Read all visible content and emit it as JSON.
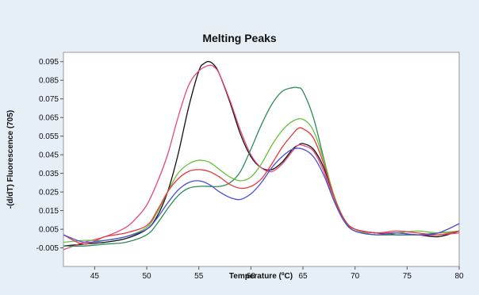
{
  "chart_data": {
    "type": "line",
    "title": "Melting Peaks",
    "xlabel": "Temperature (ºC)",
    "ylabel": "-(d/dT) Fluorescence (705)",
    "xlim": [
      42,
      80
    ],
    "ylim": [
      -0.015,
      0.1
    ],
    "x_ticks": [
      45,
      50,
      55,
      60,
      65,
      70,
      75,
      80
    ],
    "x_tick_labels": [
      "45",
      "50",
      "55",
      "60",
      "65",
      "70",
      "75",
      "80"
    ],
    "y_ticks": [
      -0.005,
      0.005,
      0.015,
      0.025,
      0.035,
      0.045,
      0.055,
      0.065,
      0.075,
      0.085,
      0.095
    ],
    "y_tick_labels": [
      "-0.005",
      "0.005",
      "0.015",
      "0.025",
      "0.035",
      "0.045",
      "0.055",
      "0.065",
      "0.075",
      "0.085",
      "0.095"
    ],
    "grid": false,
    "legend": "none",
    "series": [
      {
        "color": "#111111",
        "x": [
          42,
          44,
          46,
          48,
          50,
          51,
          52,
          53,
          54,
          55,
          55.5,
          56,
          56.5,
          57,
          58,
          59,
          60,
          61,
          62,
          63,
          64,
          64.5,
          65,
          66,
          67,
          68,
          69,
          70,
          72,
          74,
          76,
          78,
          80
        ],
        "y": [
          -0.004,
          -0.003,
          -0.002,
          0.0,
          0.005,
          0.012,
          0.025,
          0.045,
          0.07,
          0.09,
          0.094,
          0.095,
          0.093,
          0.088,
          0.073,
          0.056,
          0.044,
          0.038,
          0.037,
          0.041,
          0.048,
          0.05,
          0.051,
          0.048,
          0.038,
          0.022,
          0.01,
          0.005,
          0.003,
          0.002,
          0.002,
          0.001,
          0.004
        ]
      },
      {
        "color": "#e8457a",
        "x": [
          42,
          44,
          46,
          48,
          49,
          50,
          51,
          52,
          53,
          54,
          55,
          56,
          56.5,
          57,
          58,
          59,
          60,
          61,
          62,
          63,
          64,
          64.5,
          65,
          66,
          67,
          68,
          69,
          70,
          72,
          74,
          76,
          78,
          80
        ],
        "y": [
          -0.006,
          -0.002,
          0.001,
          0.006,
          0.011,
          0.018,
          0.03,
          0.045,
          0.065,
          0.082,
          0.09,
          0.093,
          0.092,
          0.088,
          0.074,
          0.058,
          0.045,
          0.038,
          0.036,
          0.04,
          0.047,
          0.05,
          0.05,
          0.047,
          0.036,
          0.02,
          0.009,
          0.005,
          0.003,
          0.003,
          0.002,
          0.002,
          0.003
        ]
      },
      {
        "color": "#2e8b57",
        "x": [
          42,
          44,
          46,
          48,
          50,
          51,
          52,
          53,
          54,
          55,
          56,
          57,
          58,
          59,
          60,
          61,
          62,
          63,
          64,
          64.5,
          65,
          66,
          67,
          68,
          69,
          70,
          72,
          74,
          76,
          78,
          80
        ],
        "y": [
          -0.004,
          -0.004,
          -0.003,
          -0.002,
          0.002,
          0.008,
          0.016,
          0.023,
          0.027,
          0.028,
          0.028,
          0.028,
          0.03,
          0.036,
          0.048,
          0.061,
          0.072,
          0.079,
          0.081,
          0.081,
          0.079,
          0.065,
          0.043,
          0.022,
          0.009,
          0.004,
          0.002,
          0.002,
          0.002,
          0.003,
          0.004
        ]
      },
      {
        "color": "#6abf3f",
        "x": [
          42,
          44,
          46,
          48,
          50,
          51,
          52,
          53,
          54,
          55,
          56,
          57,
          58,
          59,
          60,
          61,
          62,
          63,
          64,
          65,
          66,
          67,
          68,
          69,
          70,
          72,
          74,
          76,
          78,
          80
        ],
        "y": [
          -0.002,
          -0.001,
          -0.001,
          0.001,
          0.006,
          0.014,
          0.025,
          0.035,
          0.04,
          0.042,
          0.041,
          0.037,
          0.033,
          0.031,
          0.033,
          0.04,
          0.05,
          0.058,
          0.063,
          0.064,
          0.058,
          0.042,
          0.023,
          0.01,
          0.005,
          0.002,
          0.003,
          0.004,
          0.003,
          0.004
        ]
      },
      {
        "color": "#e8383a",
        "x": [
          42,
          44,
          46,
          48,
          50,
          51,
          52,
          53,
          54,
          55,
          56,
          57,
          58,
          59,
          60,
          61,
          62,
          63,
          64,
          64.5,
          65,
          66,
          67,
          68,
          69,
          70,
          72,
          74,
          76,
          78,
          80
        ],
        "y": [
          0.002,
          -0.003,
          0.001,
          0.003,
          0.007,
          0.015,
          0.025,
          0.032,
          0.036,
          0.037,
          0.036,
          0.033,
          0.029,
          0.027,
          0.028,
          0.032,
          0.04,
          0.049,
          0.056,
          0.059,
          0.059,
          0.054,
          0.04,
          0.022,
          0.01,
          0.005,
          0.003,
          0.004,
          0.003,
          0.002,
          0.004
        ]
      },
      {
        "color": "#4a4ed8",
        "x": [
          42,
          44,
          46,
          48,
          50,
          51,
          52,
          53,
          54,
          55,
          56,
          57,
          58,
          59,
          60,
          61,
          62,
          63,
          64,
          65,
          66,
          67,
          68,
          69,
          70,
          72,
          74,
          76,
          78,
          80
        ],
        "y": [
          0.002,
          -0.002,
          -0.001,
          0.001,
          0.005,
          0.011,
          0.019,
          0.026,
          0.03,
          0.031,
          0.029,
          0.025,
          0.022,
          0.021,
          0.024,
          0.03,
          0.038,
          0.044,
          0.048,
          0.048,
          0.044,
          0.034,
          0.02,
          0.009,
          0.004,
          0.002,
          0.003,
          0.002,
          0.003,
          0.008
        ]
      }
    ]
  }
}
